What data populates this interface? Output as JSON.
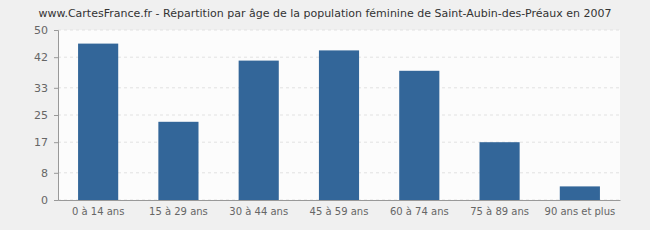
{
  "chart_data": {
    "type": "bar",
    "title": "www.CartesFrance.fr - Répartition par âge de la population féminine de Saint-Aubin-des-Préaux en 2007",
    "categories": [
      "0 à 14 ans",
      "15 à 29 ans",
      "30 à 44 ans",
      "45 à 59 ans",
      "60 à 74 ans",
      "75 à 89 ans",
      "90 ans et plus"
    ],
    "values": [
      46,
      23,
      41,
      44,
      38,
      17,
      4
    ],
    "color": "#336699",
    "ylim": [
      0,
      50
    ],
    "yticks": [
      0,
      8,
      17,
      25,
      33,
      42,
      50
    ],
    "grid": true
  }
}
